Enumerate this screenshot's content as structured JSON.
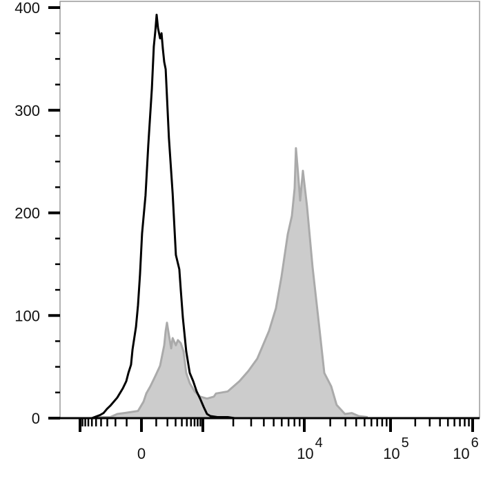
{
  "chart_data": {
    "type": "area",
    "title": "",
    "xlabel": "",
    "ylabel": "",
    "x_scale": "biexponential",
    "xlim": [
      -1000,
      1000000
    ],
    "ylim": [
      0,
      400
    ],
    "grid": false,
    "y_ticks": [
      0,
      100,
      200,
      300,
      400
    ],
    "y_tick_labels": [
      "0",
      "100",
      "200",
      "300",
      "400"
    ],
    "x_ticks": [
      {
        "value": 0,
        "base": "0",
        "exp": ""
      },
      {
        "value": 10000,
        "base": "10",
        "exp": "4"
      },
      {
        "value": 100000,
        "base": "10",
        "exp": "5"
      },
      {
        "value": 1000000,
        "base": "10",
        "exp": "6"
      }
    ],
    "series": [
      {
        "style": "filled",
        "fill": "#cccccc",
        "stroke": "#aaaaaa",
        "x": [
          -568,
          -419,
          -260,
          -182,
          -119,
          -22,
          13,
          31,
          58,
          93,
          131,
          168,
          182,
          195,
          216,
          242,
          260,
          304,
          334,
          381,
          432,
          487,
          568,
          700,
          888,
          1100,
          1287,
          1350,
          1764,
          2300,
          2820,
          3450,
          4500,
          5260,
          5970,
          6870,
          7550,
          8030,
          8280,
          8680,
          9110,
          9690,
          10770,
          12480,
          14730,
          17060,
          20500,
          23700,
          29600,
          35600,
          42800,
          54400
        ],
        "y": [
          0,
          1,
          1,
          4,
          5,
          7,
          16,
          24,
          31,
          41,
          51,
          71,
          85,
          93,
          81,
          68,
          78,
          71,
          76,
          73,
          65,
          44,
          34,
          26,
          21,
          19,
          21,
          24,
          26,
          36,
          46,
          58,
          85,
          107,
          138,
          179,
          197,
          224,
          263,
          239,
          212,
          241,
          206,
          147,
          93,
          44,
          31,
          13,
          4,
          5,
          2,
          1
        ]
      },
      {
        "style": "line",
        "stroke": "#000000",
        "x": [
          -603,
          -419,
          -357,
          -304,
          -260,
          -182,
          -131,
          -103,
          -87,
          -68,
          -58,
          -35,
          -22,
          -9,
          4,
          26,
          44,
          68,
          82,
          93,
          103,
          114,
          131,
          143,
          155,
          168,
          182,
          216,
          260,
          304,
          357,
          381,
          419,
          487,
          568,
          660,
          767,
          888,
          1017,
          1100,
          1190,
          1392,
          1764,
          2062
        ],
        "y": [
          0,
          3,
          5,
          9,
          12,
          20,
          29,
          36,
          44,
          52,
          67,
          89,
          110,
          140,
          180,
          217,
          266,
          321,
          362,
          377,
          393,
          380,
          370,
          375,
          360,
          347,
          340,
          273,
          219,
          159,
          145,
          125,
          98,
          65,
          44,
          36,
          26,
          19,
          11,
          4,
          2,
          1,
          1,
          0
        ]
      }
    ]
  }
}
